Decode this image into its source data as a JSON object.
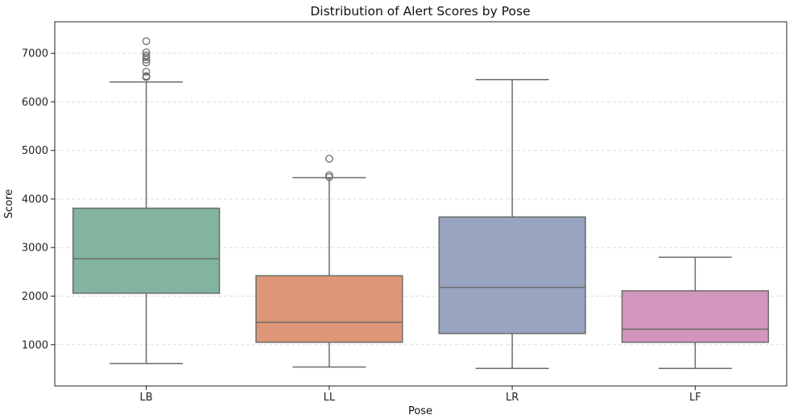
{
  "chart_data": {
    "type": "box",
    "title": "Distribution of Alert Scores by Pose",
    "xlabel": "Pose",
    "ylabel": "Score",
    "ylim": [
      150,
      7650
    ],
    "yticks": [
      1000,
      2000,
      3000,
      4000,
      5000,
      6000,
      7000
    ],
    "grid": "y-dashed",
    "categories": [
      "LB",
      "LL",
      "LR",
      "LF"
    ],
    "boxes": [
      {
        "category": "LB",
        "whisker_low": 610,
        "q1": 2060,
        "median": 2770,
        "q3": 3810,
        "whisker_high": 6410,
        "outliers": [
          6510,
          6530,
          6620,
          6810,
          6870,
          6920,
          6960,
          7020,
          7250
        ],
        "color": "#82b49f"
      },
      {
        "category": "LL",
        "whisker_low": 540,
        "q1": 1050,
        "median": 1460,
        "q3": 2420,
        "whisker_high": 4440,
        "outliers": [
          4450,
          4490,
          4830
        ],
        "color": "#de9778"
      },
      {
        "category": "LR",
        "whisker_low": 510,
        "q1": 1230,
        "median": 2180,
        "q3": 3630,
        "whisker_high": 6460,
        "outliers": [],
        "color": "#98a4c0"
      },
      {
        "category": "LF",
        "whisker_low": 510,
        "q1": 1050,
        "median": 1320,
        "q3": 2110,
        "whisker_high": 2800,
        "outliers": [],
        "color": "#d296bd"
      }
    ]
  }
}
